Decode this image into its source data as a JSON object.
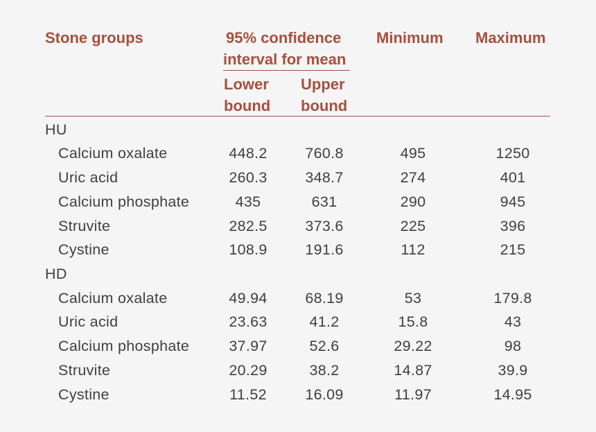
{
  "table": {
    "headers": {
      "stone_groups": "Stone groups",
      "ci_line1": "95% confidence",
      "ci_line2": "interval for mean",
      "lower_line1": "Lower",
      "lower_line2": "bound",
      "upper_line1": "Upper",
      "upper_line2": "bound",
      "minimum": "Minimum",
      "maximum": "Maximum"
    },
    "groups": [
      {
        "label": "HU",
        "rows": [
          {
            "name": "Calcium oxalate",
            "lower": "448.2",
            "upper": "760.8",
            "min": "495",
            "max": "1250"
          },
          {
            "name": "Uric acid",
            "lower": "260.3",
            "upper": "348.7",
            "min": "274",
            "max": "401"
          },
          {
            "name": "Calcium phosphate",
            "lower": "435",
            "upper": "631",
            "min": "290",
            "max": "945"
          },
          {
            "name": "Struvite",
            "lower": "282.5",
            "upper": "373.6",
            "min": "225",
            "max": "396"
          },
          {
            "name": "Cystine",
            "lower": "108.9",
            "upper": "191.6",
            "min": "112",
            "max": "215"
          }
        ]
      },
      {
        "label": "HD",
        "rows": [
          {
            "name": "Calcium oxalate",
            "lower": "49.94",
            "upper": "68.19",
            "min": "53",
            "max": "179.8"
          },
          {
            "name": "Uric acid",
            "lower": "23.63",
            "upper": "41.2",
            "min": "15.8",
            "max": "43"
          },
          {
            "name": "Calcium phosphate",
            "lower": "37.97",
            "upper": "52.6",
            "min": "29.22",
            "max": "98"
          },
          {
            "name": "Struvite",
            "lower": "20.29",
            "upper": "38.2",
            "min": "14.87",
            "max": "39.9"
          },
          {
            "name": "Cystine",
            "lower": "11.52",
            "upper": "16.09",
            "min": "11.97",
            "max": "14.95"
          }
        ]
      }
    ]
  },
  "colors": {
    "header_text": "#a84f3f",
    "rule": "#a84f3f",
    "body_text": "#3f3f3f",
    "background": "#f5f5f5"
  }
}
